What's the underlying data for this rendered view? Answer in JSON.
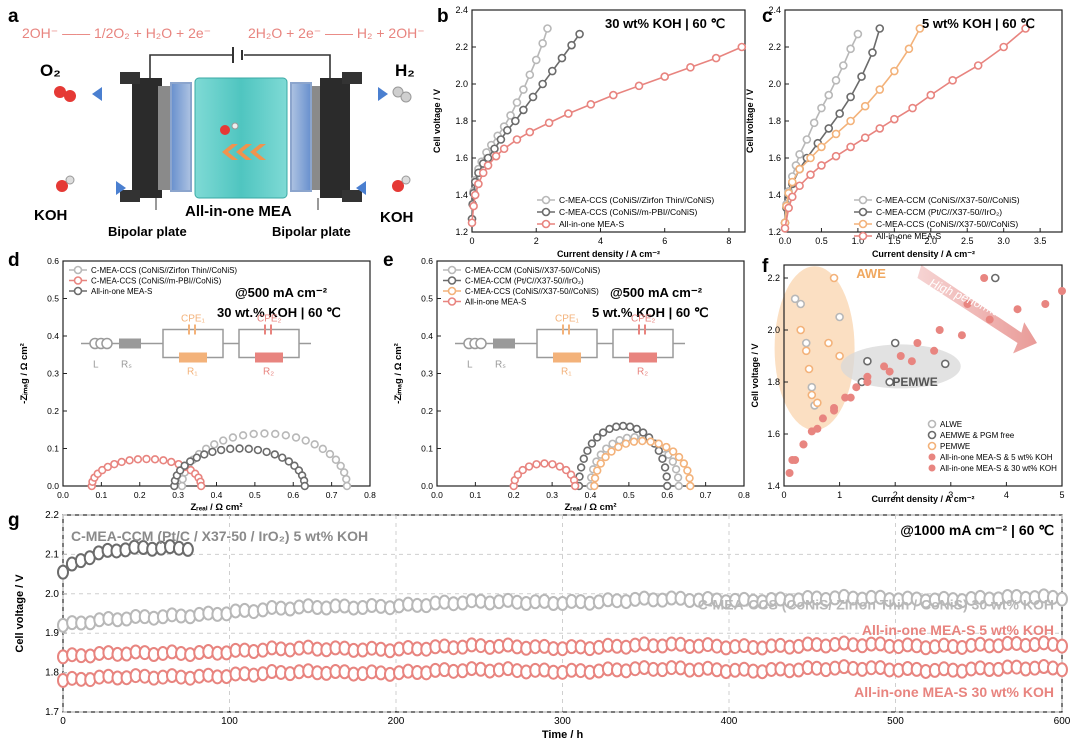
{
  "figure": {
    "panel_labels": [
      "a",
      "b",
      "c",
      "d",
      "e",
      "f",
      "g"
    ],
    "colors": {
      "grey": "#b8b8b8",
      "dark": "#6b6b6b",
      "salmon": "#e8847f",
      "orange": "#f3b27a",
      "red": "#e88580",
      "teal": "#4fc5c0"
    }
  },
  "schematic": {
    "eq_left": "2OH⁻ —— 1/2O₂ + H₂O + 2e⁻",
    "eq_right": "2H₂O + 2e⁻ —— H₂ + 2OH⁻",
    "o2": "O₂",
    "h2": "H₂",
    "koh_left": "KOH",
    "koh_right": "KOH",
    "mea_label": "All-in-one MEA",
    "bp_left": "Bipolar plate",
    "bp_right": "Bipolar plate"
  },
  "circuit": {
    "L": "L",
    "Rs": "Rₛ",
    "CPE1": "CPE₁",
    "CPE2": "CPE₂",
    "R1": "R₁",
    "R2": "R₂"
  },
  "chart_data": [
    {
      "id": "b",
      "type": "line",
      "condition": "30 wt% KOH | 60 ℃",
      "xlabel": "Current density / A cm⁻²",
      "ylabel": "Cell voltage / V",
      "xlim": [
        0,
        8.5
      ],
      "ylim": [
        1.2,
        2.4
      ],
      "xticks": [
        0,
        2,
        4,
        6,
        8
      ],
      "yticks": [
        1.2,
        1.4,
        1.6,
        1.8,
        2.0,
        2.2,
        2.4
      ],
      "legend": "bottom-right",
      "series": [
        {
          "name": "C-MEA-CCS (CoNiS//Zirfon Thin//CoNiS)",
          "color": "#b8b8b8",
          "x": [
            0,
            0.02,
            0.05,
            0.1,
            0.2,
            0.3,
            0.45,
            0.6,
            0.8,
            1.0,
            1.2,
            1.4,
            1.6,
            1.8,
            2.0,
            2.2,
            2.35
          ],
          "y": [
            1.27,
            1.35,
            1.42,
            1.48,
            1.54,
            1.58,
            1.63,
            1.67,
            1.72,
            1.77,
            1.83,
            1.9,
            1.97,
            2.05,
            2.13,
            2.22,
            2.3
          ]
        },
        {
          "name": "C-MEA-CCS (CoNiS//m-PBI//CoNiS)",
          "color": "#6b6b6b",
          "x": [
            0,
            0.02,
            0.05,
            0.1,
            0.2,
            0.35,
            0.5,
            0.7,
            0.9,
            1.1,
            1.35,
            1.6,
            1.9,
            2.2,
            2.5,
            2.8,
            3.1,
            3.35
          ],
          "y": [
            1.27,
            1.35,
            1.41,
            1.47,
            1.52,
            1.57,
            1.6,
            1.65,
            1.7,
            1.75,
            1.8,
            1.86,
            1.93,
            2.0,
            2.07,
            2.14,
            2.21,
            2.27
          ]
        },
        {
          "name": "All-in-one MEA-S",
          "color": "#e8847f",
          "x": [
            0,
            0.05,
            0.1,
            0.2,
            0.35,
            0.5,
            0.75,
            1.0,
            1.4,
            1.8,
            2.4,
            3.0,
            3.7,
            4.4,
            5.2,
            6.0,
            6.8,
            7.6,
            8.4
          ],
          "y": [
            1.25,
            1.34,
            1.4,
            1.46,
            1.52,
            1.56,
            1.61,
            1.65,
            1.7,
            1.74,
            1.79,
            1.84,
            1.89,
            1.94,
            1.99,
            2.04,
            2.09,
            2.14,
            2.2
          ]
        }
      ]
    },
    {
      "id": "c",
      "type": "line",
      "condition": "5 wt% KOH | 60 ℃",
      "xlabel": "Current density / A cm⁻²",
      "ylabel": "Cell voltage / V",
      "xlim": [
        0,
        3.8
      ],
      "ylim": [
        1.2,
        2.4
      ],
      "xticks": [
        0,
        0.5,
        1.0,
        1.5,
        2.0,
        2.5,
        3.0,
        3.5
      ],
      "yticks": [
        1.2,
        1.4,
        1.6,
        1.8,
        2.0,
        2.2,
        2.4
      ],
      "legend": "bottom-right",
      "series": [
        {
          "name": "C-MEA-CCM (CoNiS//X37-50//CoNiS)",
          "color": "#b8b8b8",
          "x": [
            0,
            0.02,
            0.05,
            0.1,
            0.15,
            0.2,
            0.3,
            0.4,
            0.5,
            0.6,
            0.7,
            0.8,
            0.9,
            1.0
          ],
          "y": [
            1.25,
            1.35,
            1.42,
            1.5,
            1.56,
            1.62,
            1.7,
            1.79,
            1.87,
            1.94,
            2.02,
            2.1,
            2.19,
            2.27
          ]
        },
        {
          "name": "C-MEA-CCM (Pt/C//X37-50//IrO₂)",
          "color": "#6b6b6b",
          "x": [
            0,
            0.02,
            0.05,
            0.1,
            0.2,
            0.3,
            0.45,
            0.6,
            0.75,
            0.9,
            1.05,
            1.2,
            1.3
          ],
          "y": [
            1.25,
            1.33,
            1.4,
            1.46,
            1.54,
            1.6,
            1.68,
            1.76,
            1.84,
            1.93,
            2.04,
            2.17,
            2.3
          ]
        },
        {
          "name": "C-MEA-CCS (CoNiS//X37-50//CoNiS)",
          "color": "#f3b27a",
          "x": [
            0,
            0.02,
            0.05,
            0.1,
            0.2,
            0.35,
            0.5,
            0.7,
            0.9,
            1.1,
            1.3,
            1.5,
            1.7,
            1.85
          ],
          "y": [
            1.25,
            1.34,
            1.41,
            1.47,
            1.54,
            1.6,
            1.66,
            1.73,
            1.8,
            1.88,
            1.97,
            2.07,
            2.19,
            2.3
          ]
        },
        {
          "name": "All-in-one MEA-S",
          "color": "#e8847f",
          "x": [
            0,
            0.05,
            0.1,
            0.2,
            0.35,
            0.5,
            0.7,
            0.9,
            1.1,
            1.3,
            1.5,
            1.75,
            2.0,
            2.3,
            2.65,
            3.0,
            3.3
          ],
          "y": [
            1.22,
            1.33,
            1.39,
            1.45,
            1.51,
            1.56,
            1.61,
            1.66,
            1.71,
            1.76,
            1.81,
            1.87,
            1.94,
            2.02,
            2.1,
            2.2,
            2.3
          ]
        }
      ]
    },
    {
      "id": "d",
      "type": "scatter",
      "title": "@500 mA cm⁻²",
      "condition": "30 wt.% KOH | 60 ℃",
      "xlabel": "Zᵣₑₐₗ / Ω cm²",
      "ylabel": "-Zᵢₘₐg / Ω cm²",
      "xlim": [
        0,
        0.8
      ],
      "ylim": [
        0,
        0.6
      ],
      "xticks": [
        0,
        0.1,
        0.2,
        0.3,
        0.4,
        0.5,
        0.6,
        0.7,
        0.8
      ],
      "yticks": [
        0,
        0.1,
        0.2,
        0.3,
        0.4,
        0.5,
        0.6
      ],
      "legend": "top-left",
      "series": [
        {
          "name": "C-MEA-CCS (CoNiS//Zirfon Thin//CoNiS)",
          "color": "#b8b8b8",
          "arc": [
            0.31,
            0.74,
            0.14
          ],
          "n": 24
        },
        {
          "name": "C-MEA-CCS (CoNiS//m-PBI//CoNiS)",
          "color": "#e8847f",
          "arc": [
            0.075,
            0.36,
            0.072
          ],
          "n": 20
        },
        {
          "name": "All-in-one MEA-S",
          "color": "#6b6b6b",
          "arc": [
            0.29,
            0.63,
            0.1
          ],
          "n": 22
        }
      ]
    },
    {
      "id": "e",
      "type": "scatter",
      "title": "@500 mA cm⁻²",
      "condition": "5 wt.% KOH | 60 ℃",
      "xlabel": "Zᵣₑₐₗ / Ω cm²",
      "ylabel": "-Zᵢₘₐg / Ω cm²",
      "xlim": [
        0,
        0.8
      ],
      "ylim": [
        0,
        0.6
      ],
      "xticks": [
        0,
        0.1,
        0.2,
        0.3,
        0.4,
        0.5,
        0.6,
        0.7,
        0.8
      ],
      "yticks": [
        0,
        0.1,
        0.2,
        0.3,
        0.4,
        0.5,
        0.6
      ],
      "legend": "top-left",
      "series": [
        {
          "name": "C-MEA-CCM (CoNiS//X37-50//CoNiS)",
          "color": "#b8b8b8",
          "arc": [
            0.4,
            0.63,
            0.13
          ],
          "n": 18
        },
        {
          "name": "C-MEA-CCM (Pt/C//X37-50//IrO₂)",
          "color": "#6b6b6b",
          "arc": [
            0.37,
            0.6,
            0.16
          ],
          "n": 20
        },
        {
          "name": "C-MEA-CCS (CoNiS//X37-50//CoNiS)",
          "color": "#f3b27a",
          "arc": [
            0.41,
            0.66,
            0.12
          ],
          "n": 18
        },
        {
          "name": "All-in-one MEA-S",
          "color": "#e8847f",
          "arc": [
            0.2,
            0.36,
            0.06
          ],
          "n": 12
        }
      ]
    },
    {
      "id": "f",
      "type": "scatter",
      "xlabel": "Current density / A cm⁻²",
      "ylabel": "Cell voltage / V",
      "xlim": [
        0,
        5
      ],
      "ylim": [
        1.4,
        2.25
      ],
      "xticks": [
        0,
        1,
        2,
        3,
        4,
        5
      ],
      "yticks": [
        1.4,
        1.6,
        1.8,
        2.0,
        2.2
      ],
      "legend": "bottom-right",
      "annotations": [
        "AWE",
        "PEMWE",
        "High performance"
      ],
      "series": [
        {
          "name": "ALWE",
          "color": "#b8b8b8",
          "x": [
            0.2,
            0.3,
            0.4,
            0.5,
            0.55,
            1.0
          ],
          "y": [
            2.12,
            2.1,
            1.95,
            1.78,
            1.71,
            2.05
          ]
        },
        {
          "name": "AEMWE & PGM free",
          "color": "#6b6b6b",
          "x": [
            1.4,
            1.5,
            1.9,
            2.0,
            2.9,
            3.8
          ],
          "y": [
            1.8,
            1.88,
            1.8,
            1.95,
            1.87,
            2.2
          ]
        },
        {
          "name": "PEMWE",
          "color": "#f3b27a",
          "x": [
            0.3,
            0.4,
            0.45,
            0.5,
            0.6,
            0.8,
            0.9,
            1.0
          ],
          "y": [
            2.0,
            1.92,
            1.85,
            1.75,
            1.72,
            1.95,
            2.2,
            1.9
          ]
        },
        {
          "name": "All-in-one MEA-S & 5 wt% KOH",
          "color": "#e88580",
          "x": [
            0.1,
            0.2,
            0.35,
            0.5,
            0.7,
            0.9,
            1.1,
            1.3,
            1.5,
            1.8,
            2.1,
            2.4,
            2.8,
            3.3,
            3.6
          ],
          "y": [
            1.45,
            1.5,
            1.56,
            1.61,
            1.66,
            1.7,
            1.74,
            1.78,
            1.82,
            1.86,
            1.9,
            1.95,
            2.0,
            2.1,
            2.2
          ]
        },
        {
          "name": "All-in-one MEA-S & 30 wt% KOH",
          "color": "#e88580",
          "x": [
            0.15,
            0.35,
            0.6,
            0.9,
            1.2,
            1.5,
            1.9,
            2.3,
            2.7,
            3.2,
            3.7,
            4.2,
            4.7,
            5.0
          ],
          "y": [
            1.5,
            1.56,
            1.62,
            1.69,
            1.74,
            1.8,
            1.84,
            1.88,
            1.92,
            1.98,
            2.04,
            2.08,
            2.1,
            2.15
          ]
        }
      ]
    },
    {
      "id": "g",
      "type": "line",
      "condition": "@1000 mA cm⁻² | 60 ℃",
      "xlabel": "Time / h",
      "ylabel": "Cell voltage / V",
      "xlim": [
        0,
        600
      ],
      "ylim": [
        1.7,
        2.2
      ],
      "xticks": [
        0,
        100,
        200,
        300,
        400,
        500,
        600
      ],
      "yticks": [
        1.7,
        1.8,
        1.9,
        2.0,
        2.1,
        2.2
      ],
      "series": [
        {
          "name": "C-MEA-CCM (Pt/C / X37-50 / IrO₂)  5 wt% KOH",
          "color": "#6b6b6b",
          "x0": 0,
          "x1": 75,
          "y0": 2.055,
          "y1": 2.12
        },
        {
          "name": "C-MEA-CCS (CoNiS/ Zirfon Thin / CoNiS)  30 wt% KOH",
          "color": "#b8b8b8",
          "x0": 0,
          "x1": 600,
          "y0": 1.92,
          "y1": 1.99
        },
        {
          "name": "All-in-one MEA-S 5 wt% KOH",
          "color": "#e8847f",
          "x0": 0,
          "x1": 600,
          "y0": 1.84,
          "y1": 1.87
        },
        {
          "name": "All-in-one MEA-S 30 wt% KOH",
          "color": "#e8847f",
          "x0": 0,
          "x1": 600,
          "y0": 1.78,
          "y1": 1.81
        }
      ]
    }
  ]
}
